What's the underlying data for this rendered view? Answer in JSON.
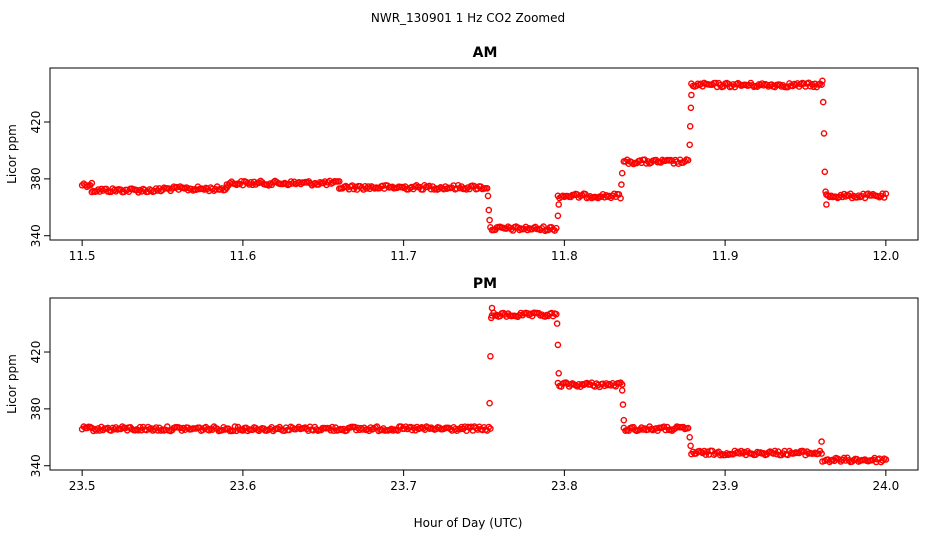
{
  "chart_data": {
    "type": "scatter",
    "title": "NWR_130901  1 Hz CO2 Zoomed",
    "xlabel": "Hour of Day (UTC)",
    "marker_color": "#ff0000",
    "panels": [
      {
        "id": "am",
        "title": "AM",
        "ylabel": "Licor ppm",
        "xlim": [
          11.48,
          12.02
        ],
        "ylim": [
          337,
          458
        ],
        "xticks": [
          11.5,
          11.6,
          11.7,
          11.8,
          11.9,
          12.0
        ],
        "xtick_labels": [
          "11.5",
          "11.6",
          "11.7",
          "11.8",
          "11.9",
          "12.0"
        ],
        "yticks": [
          340,
          380,
          420
        ],
        "ytick_labels": [
          "340",
          "380",
          "420"
        ],
        "segments": [
          {
            "x0": 11.5,
            "x1": 11.506,
            "y": 376
          },
          {
            "x0": 11.506,
            "x1": 11.55,
            "y": 372
          },
          {
            "x0": 11.55,
            "x1": 11.59,
            "y": 373
          },
          {
            "x0": 11.59,
            "x1": 11.66,
            "y": 377
          },
          {
            "x0": 11.66,
            "x1": 11.752,
            "y": 374
          },
          {
            "x0": 11.754,
            "x1": 11.795,
            "y": 345
          },
          {
            "x0": 11.796,
            "x1": 11.835,
            "y": 368
          },
          {
            "x0": 11.837,
            "x1": 11.877,
            "y": 392
          },
          {
            "x0": 11.879,
            "x1": 11.96,
            "y": 446
          },
          {
            "x0": 11.963,
            "x1": 12.0,
            "y": 368
          }
        ],
        "transition_points": [
          {
            "x": 11.7525,
            "y": 368
          },
          {
            "x": 11.753,
            "y": 358
          },
          {
            "x": 11.7535,
            "y": 351
          },
          {
            "x": 11.796,
            "y": 354
          },
          {
            "x": 11.7965,
            "y": 362
          },
          {
            "x": 11.8355,
            "y": 376
          },
          {
            "x": 11.836,
            "y": 384
          },
          {
            "x": 11.878,
            "y": 404
          },
          {
            "x": 11.8783,
            "y": 417
          },
          {
            "x": 11.8787,
            "y": 430
          },
          {
            "x": 11.879,
            "y": 439
          },
          {
            "x": 11.9605,
            "y": 449
          },
          {
            "x": 11.961,
            "y": 434
          },
          {
            "x": 11.9615,
            "y": 412
          },
          {
            "x": 11.962,
            "y": 385
          },
          {
            "x": 11.9625,
            "y": 371
          },
          {
            "x": 11.963,
            "y": 362
          }
        ]
      },
      {
        "id": "pm",
        "title": "PM",
        "ylabel": "Licor ppm",
        "xlim": [
          23.48,
          24.02
        ],
        "ylim": [
          337,
          458
        ],
        "xticks": [
          23.5,
          23.6,
          23.7,
          23.8,
          23.9,
          24.0
        ],
        "xtick_labels": [
          "23.5",
          "23.6",
          "23.7",
          "23.8",
          "23.9",
          "24.0"
        ],
        "yticks": [
          340,
          380,
          420
        ],
        "ytick_labels": [
          "340",
          "380",
          "420"
        ],
        "segments": [
          {
            "x0": 23.5,
            "x1": 23.6,
            "y": 366
          },
          {
            "x0": 23.6,
            "x1": 23.754,
            "y": 366
          },
          {
            "x0": 23.755,
            "x1": 23.795,
            "y": 446
          },
          {
            "x0": 23.796,
            "x1": 23.836,
            "y": 397
          },
          {
            "x0": 23.837,
            "x1": 23.877,
            "y": 366
          },
          {
            "x0": 23.879,
            "x1": 23.96,
            "y": 349
          },
          {
            "x0": 23.962,
            "x1": 24.0,
            "y": 344
          }
        ],
        "transition_points": [
          {
            "x": 23.7535,
            "y": 384
          },
          {
            "x": 23.754,
            "y": 417
          },
          {
            "x": 23.7545,
            "y": 444
          },
          {
            "x": 23.755,
            "y": 451
          },
          {
            "x": 23.7955,
            "y": 440
          },
          {
            "x": 23.796,
            "y": 425
          },
          {
            "x": 23.7965,
            "y": 405
          },
          {
            "x": 23.836,
            "y": 393
          },
          {
            "x": 23.8365,
            "y": 383
          },
          {
            "x": 23.837,
            "y": 372
          },
          {
            "x": 23.878,
            "y": 360
          },
          {
            "x": 23.8785,
            "y": 354
          },
          {
            "x": 23.96,
            "y": 357
          },
          {
            "x": 23.9605,
            "y": 343
          }
        ]
      }
    ]
  }
}
